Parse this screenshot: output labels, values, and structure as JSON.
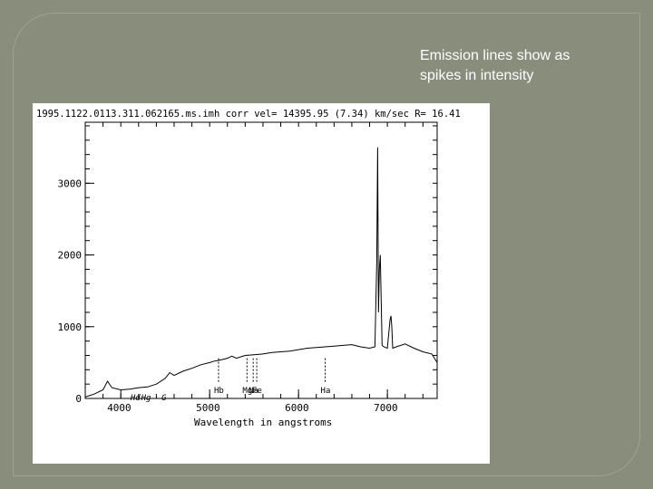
{
  "slide": {
    "caption_lines": [
      "Emission lines show as",
      "spikes in intensity"
    ],
    "background_color": "#898d7c"
  },
  "chart_data": {
    "type": "line",
    "title": "1995.1122.0113.311.062165.ms.imh  corr vel= 14395.95 (7.34) km/sec R= 16.41",
    "xlabel": "Wavelength in angstroms",
    "ylabel": "",
    "xlim": [
      3600,
      7560
    ],
    "ylim": [
      0,
      3850
    ],
    "x_ticks": [
      4000,
      5000,
      6000,
      7000
    ],
    "y_ticks": [
      0,
      1000,
      2000,
      3000
    ],
    "y_tick_labels": [
      "0",
      "1000",
      "2000",
      "3000"
    ],
    "grid": false,
    "legend": "none",
    "series": [
      {
        "x": [
          3600,
          3700,
          3800,
          3850,
          3900,
          4000,
          4100,
          4200,
          4300,
          4400,
          4500,
          4550,
          4600,
          4700,
          4800,
          4900,
          5000,
          5050,
          5100,
          5200,
          5250,
          5300,
          5400,
          5500,
          5600,
          5700,
          5800,
          5900,
          6000,
          6100,
          6200,
          6300,
          6400,
          6500,
          6600,
          6700,
          6800,
          6860,
          6880,
          6890,
          6900,
          6910,
          6920,
          6940,
          6960,
          6980,
          7000,
          7030,
          7040,
          7050,
          7060,
          7100,
          7200,
          7300,
          7400,
          7500,
          7560
        ],
        "y": [
          20,
          60,
          120,
          240,
          150,
          120,
          130,
          150,
          160,
          200,
          280,
          360,
          320,
          380,
          420,
          470,
          500,
          520,
          530,
          560,
          590,
          560,
          600,
          610,
          620,
          640,
          650,
          660,
          680,
          700,
          710,
          720,
          730,
          740,
          750,
          720,
          700,
          720,
          1900,
          3500,
          1200,
          1800,
          2000,
          740,
          720,
          710,
          700,
          1100,
          1150,
          1000,
          700,
          720,
          760,
          700,
          650,
          620,
          500
        ]
      }
    ],
    "annotations": [
      {
        "label": "Hb",
        "x": 5100
      },
      {
        "label": "Mg",
        "x": 5420
      },
      {
        "label": "Na",
        "x": 5490
      },
      {
        "label": "Fe",
        "x": 5530
      },
      {
        "label": "Ha",
        "x": 6300
      }
    ],
    "lower_annotations": [
      {
        "label": "Hg",
        "x": 4270
      },
      {
        "label": "Hd",
        "x": 4150
      },
      {
        "label": "G",
        "x": 4500
      }
    ]
  }
}
